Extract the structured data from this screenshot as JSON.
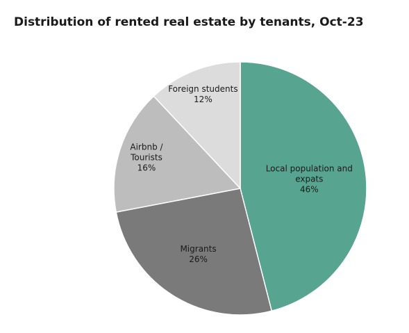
{
  "chart_data": {
    "type": "pie",
    "title": "Distribution of rented real estate by tenants, Oct-23",
    "categories": [
      "Local population and expats",
      "Migrants",
      "Airbnb / Tourists",
      "Foreign students"
    ],
    "values": [
      46,
      26,
      16,
      12
    ],
    "value_labels": [
      "46%",
      "26%",
      "16%",
      "12%"
    ],
    "colors": [
      "#57a590",
      "#7a7a7a",
      "#bdbdbd",
      "#dcdcdc"
    ]
  }
}
